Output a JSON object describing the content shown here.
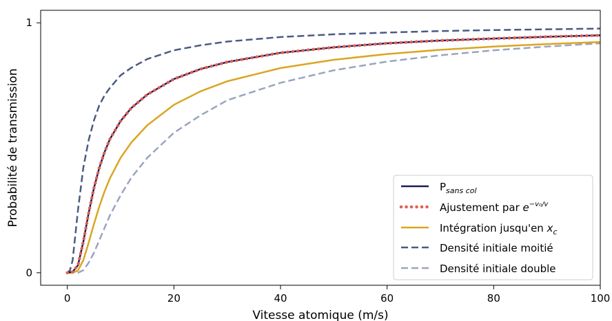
{
  "chart_data": {
    "type": "line",
    "xlabel": "Vitesse atomique (m/s)",
    "ylabel": "Probabilité de transmission",
    "xlim": [
      -5,
      100
    ],
    "ylim": [
      -0.05,
      1.05
    ],
    "x_ticks": [
      "0",
      "20",
      "40",
      "60",
      "80",
      "100"
    ],
    "y_ticks": [
      "0",
      "1"
    ],
    "legend_placement": "bottom-right",
    "grid": false,
    "series": [
      {
        "name_main": "P",
        "name_sub": "sans col",
        "color": "#1a1a5e",
        "style": "solid",
        "x": [
          0,
          1,
          2,
          3,
          4,
          5,
          6,
          7,
          8,
          10,
          12,
          15,
          20,
          25,
          30,
          40,
          50,
          60,
          70,
          80,
          90,
          100
        ],
        "y": [
          0.0,
          0.004,
          0.03,
          0.123,
          0.238,
          0.339,
          0.42,
          0.483,
          0.535,
          0.607,
          0.659,
          0.713,
          0.775,
          0.815,
          0.843,
          0.88,
          0.902,
          0.918,
          0.929,
          0.937,
          0.944,
          0.95
        ]
      },
      {
        "name_main": "Ajustement par ",
        "name_math": "e",
        "name_sup": "−v₀/v",
        "color": "#e06050",
        "style": "dotted",
        "x": [
          0,
          1,
          2,
          3,
          4,
          5,
          6,
          7,
          8,
          10,
          12,
          15,
          20,
          25,
          30,
          40,
          50,
          60,
          70,
          80,
          90,
          100
        ],
        "y": [
          0.0,
          0.004,
          0.03,
          0.123,
          0.238,
          0.339,
          0.42,
          0.483,
          0.535,
          0.607,
          0.659,
          0.713,
          0.775,
          0.815,
          0.843,
          0.88,
          0.902,
          0.918,
          0.929,
          0.937,
          0.944,
          0.95
        ]
      },
      {
        "name_main": "Intégration jusqu'en ",
        "name_math": "x",
        "name_sub": "c",
        "color": "#daa520",
        "style": "solid",
        "x": [
          0,
          1,
          2,
          3,
          4,
          5,
          6,
          7,
          8,
          10,
          12,
          15,
          20,
          25,
          30,
          40,
          50,
          60,
          70,
          80,
          90,
          100
        ],
        "y": [
          0.0,
          0.0,
          0.009,
          0.05,
          0.12,
          0.195,
          0.265,
          0.326,
          0.378,
          0.46,
          0.521,
          0.59,
          0.672,
          0.726,
          0.766,
          0.819,
          0.852,
          0.875,
          0.892,
          0.905,
          0.915,
          0.923
        ]
      },
      {
        "name_main": "Densité initiale moitié",
        "color": "#4a5a82",
        "style": "dashed",
        "x": [
          0,
          0.5,
          1,
          1.5,
          2,
          3,
          4,
          5,
          6,
          7,
          8,
          10,
          12,
          15,
          20,
          25,
          30,
          40,
          50,
          60,
          70,
          80,
          90,
          100
        ],
        "y": [
          0.0,
          0.01,
          0.05,
          0.15,
          0.25,
          0.42,
          0.53,
          0.61,
          0.67,
          0.71,
          0.74,
          0.79,
          0.82,
          0.855,
          0.89,
          0.91,
          0.925,
          0.943,
          0.954,
          0.961,
          0.967,
          0.971,
          0.974,
          0.977
        ]
      },
      {
        "name_main": "Densité initiale double",
        "color": "#9aa4c0",
        "style": "dashed",
        "x": [
          0,
          1,
          2,
          3,
          4,
          5,
          6,
          7,
          8,
          10,
          12,
          15,
          20,
          25,
          30,
          40,
          50,
          60,
          70,
          80,
          90,
          100
        ],
        "y": [
          0.0,
          0.0,
          0.0,
          0.01,
          0.04,
          0.08,
          0.13,
          0.18,
          0.23,
          0.31,
          0.38,
          0.46,
          0.56,
          0.63,
          0.69,
          0.76,
          0.81,
          0.845,
          0.87,
          0.89,
          0.905,
          0.918
        ]
      }
    ]
  }
}
